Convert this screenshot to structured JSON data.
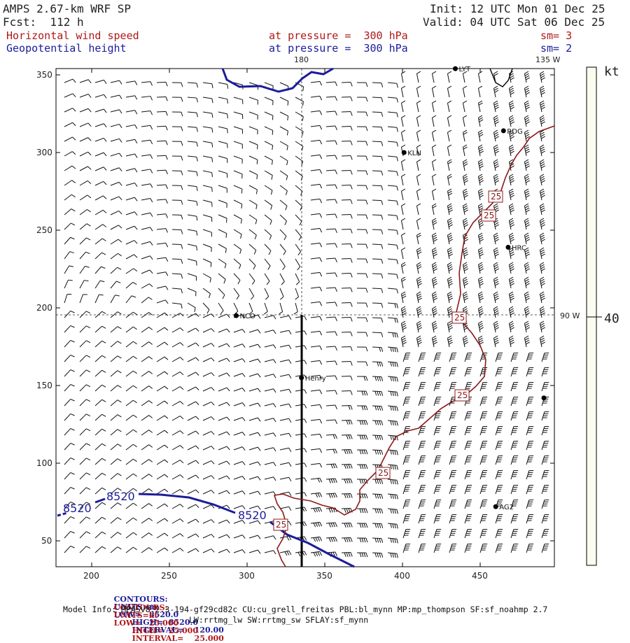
{
  "header": {
    "model": "AMPS 2.67-km WRF SP",
    "forecast": "Fcst:  112 h",
    "init": "Init: 12 UTC Mon 01 Dec 25",
    "valid": "Valid: 04 UTC Sat 06 Dec 25",
    "field1_name": "Horizontal wind speed",
    "field1_level": "at pressure =  300 hPa",
    "field1_sm": "sm= 3",
    "field2_name": "Geopotential height",
    "field2_level": "at pressure =  300 hPa",
    "field2_sm": "sm= 2"
  },
  "map": {
    "meridian_180": "180",
    "meridian_135w": "135 W",
    "meridian_90w": "90 W",
    "x_ticks": [
      "200",
      "250",
      "300",
      "350",
      "400",
      "450"
    ],
    "y_ticks": [
      "350",
      "300",
      "250",
      "200",
      "150",
      "100",
      "50"
    ],
    "stations": [
      {
        "name": "LYT",
        "x": 434,
        "y": 354
      },
      {
        "name": "RDG",
        "x": 465,
        "y": 314
      },
      {
        "name": "KLN",
        "x": 401,
        "y": 300
      },
      {
        "name": "HRC",
        "x": 468,
        "y": 239
      },
      {
        "name": "NCO",
        "x": 293,
        "y": 195
      },
      {
        "name": "Henry",
        "x": 335,
        "y": 155
      },
      {
        "name": "AG2",
        "x": 460,
        "y": 72
      },
      {
        "name": "",
        "x": 491,
        "y": 142
      }
    ],
    "contour_labels_height": [
      "8520",
      "8520",
      "8520"
    ],
    "contour_labels_speed": [
      "25",
      "25",
      "25",
      "25",
      "25",
      "25"
    ],
    "colorbar_unit": "kt",
    "colorbar_value": "40",
    "color_height": "#1c1c9c",
    "color_speed": "#8b1a1a"
  },
  "footer": {
    "line1_contours": "CONTOURS:",
    "line1_units": "UNITS=m",
    "line1_low": "LOW=   8520.0",
    "line1_high": "HIGH=  8520.0",
    "line1_interval": "INTERVAL=    120.00",
    "line2_contours": "CONTOURS:",
    "line2_units": "UNITS=kt",
    "line2_low": "LOW=   25.000",
    "line2_high": "HIGH=  25.000",
    "line2_interval": "INTERVAL=    25.000",
    "model_info": "Model Info: MPASv8.2.3-194-gf29cd82c CU:cu_grell_freitas PBL:bl_mynn MP:mp_thompson SF:sf_noahmp 2.7",
    "model_info2": "LW:rrtmg_lw SW:rrtmg_sw SFLAY:sf_mynn"
  }
}
